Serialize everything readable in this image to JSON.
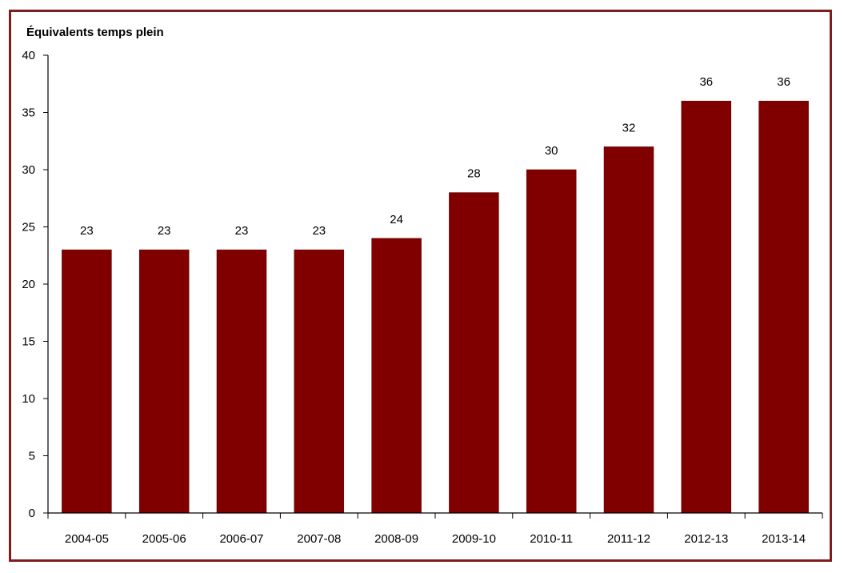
{
  "chart_data": {
    "type": "bar",
    "title": "",
    "xlabel": "",
    "ylabel": "Équivalents temps plein",
    "categories": [
      "2004-05",
      "2005-06",
      "2006-07",
      "2007-08",
      "2008-09",
      "2009-10",
      "2010-11",
      "2011-12",
      "2012-13",
      "2013-14"
    ],
    "values": [
      23,
      23,
      23,
      23,
      24,
      28,
      30,
      32,
      36,
      36
    ],
    "ylim": [
      0,
      40
    ],
    "yticks": [
      0,
      5,
      10,
      15,
      20,
      25,
      30,
      35,
      40
    ],
    "grid": false,
    "legend": "none",
    "bar_color": "#800000",
    "frame_color": "#7f1d1d"
  }
}
